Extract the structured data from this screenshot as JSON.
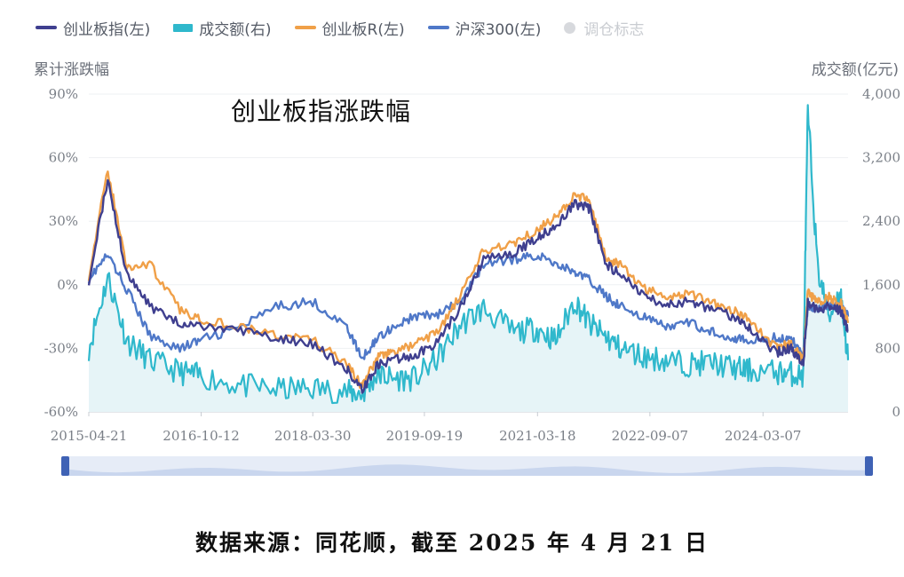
{
  "legend": [
    {
      "name": "创业板指(左)",
      "color": "#3f3f8f",
      "style": "line"
    },
    {
      "name": "成交额(右)",
      "color": "#2fb8cc",
      "style": "bar"
    },
    {
      "name": "创业板R(左)",
      "color": "#f0a048",
      "style": "line"
    },
    {
      "name": "沪深300(左)",
      "color": "#4f78c8",
      "style": "line"
    },
    {
      "name": "调仓标志",
      "color": "#d7d9dd",
      "style": "dot",
      "muted": true
    }
  ],
  "chart_data": {
    "type": "line",
    "title": "创业板指涨跌幅",
    "ylabel": "累计涨跌幅",
    "y2label": "成交额(亿元)",
    "ylim": [
      -60,
      90
    ],
    "yticks": [
      "90%",
      "60%",
      "30%",
      "0%",
      "-30%",
      "-60%"
    ],
    "y2lim": [
      0,
      4000
    ],
    "y2ticks": [
      "4,000",
      "3,200",
      "2,400",
      "1,600",
      "800",
      "0"
    ],
    "xticks": [
      "2015-04-21",
      "2016-10-12",
      "2018-03-30",
      "2019-09-19",
      "2021-03-18",
      "2022-09-07",
      "2024-03-07"
    ],
    "x_years": [
      2015.3,
      2015.55,
      2015.8,
      2016.1,
      2016.5,
      2016.78,
      2017.3,
      2017.8,
      2018.25,
      2018.7,
      2018.9,
      2019.1,
      2019.3,
      2019.6,
      2019.9,
      2020.2,
      2020.5,
      2020.9,
      2021.2,
      2021.45,
      2021.7,
      2021.9,
      2022.1,
      2022.3,
      2022.6,
      2022.9,
      2023.2,
      2023.5,
      2023.8,
      2024.0,
      2024.35,
      2024.55,
      2024.71,
      2024.77,
      2024.9,
      2025.05,
      2025.2,
      2025.3
    ],
    "series": [
      {
        "name": "创业板指(左)",
        "axis": "left",
        "values": [
          2,
          50,
          5,
          -10,
          -18,
          -20,
          -22,
          -25,
          -28,
          -40,
          -50,
          -38,
          -36,
          -33,
          -27,
          -10,
          12,
          15,
          22,
          28,
          38,
          36,
          10,
          5,
          -5,
          -10,
          -8,
          -12,
          -15,
          -20,
          -32,
          -30,
          -38,
          -8,
          -12,
          -10,
          -12,
          -22
        ]
      },
      {
        "name": "创业板R(左)",
        "axis": "left",
        "values": [
          4,
          54,
          8,
          10,
          -12,
          -16,
          -20,
          -24,
          -26,
          -38,
          -48,
          -34,
          -32,
          -28,
          -22,
          -5,
          16,
          20,
          26,
          32,
          42,
          40,
          13,
          9,
          -1,
          -6,
          -4,
          -8,
          -12,
          -17,
          -30,
          -28,
          -36,
          -4,
          -8,
          -6,
          -8,
          -18
        ]
      },
      {
        "name": "沪深300(左)",
        "axis": "left",
        "values": [
          3,
          14,
          -2,
          -24,
          -30,
          -26,
          -20,
          -10,
          -8,
          -20,
          -35,
          -25,
          -20,
          -15,
          -14,
          -8,
          10,
          12,
          14,
          10,
          6,
          2,
          -5,
          -10,
          -15,
          -20,
          -18,
          -22,
          -25,
          -27,
          -25,
          -26,
          -32,
          -10,
          -12,
          -10,
          -10,
          -15
        ]
      },
      {
        "name": "成交额(右)",
        "axis": "right",
        "type": "area",
        "values": [
          800,
          1700,
          900,
          650,
          500,
          450,
          330,
          280,
          300,
          250,
          220,
          480,
          420,
          420,
          680,
          1100,
          1300,
          1000,
          1050,
          900,
          1400,
          1100,
          950,
          800,
          700,
          650,
          600,
          620,
          550,
          520,
          500,
          480,
          450,
          3800,
          1800,
          1200,
          1500,
          650
        ]
      }
    ]
  },
  "slider": {
    "label": ""
  },
  "footer": {
    "source": "数据来源：同花顺，截至 2025 年 4 月 21 日"
  }
}
